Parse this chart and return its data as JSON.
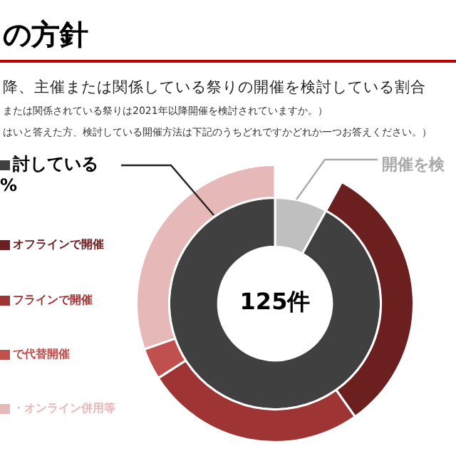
{
  "chart_data": {
    "type": "donut",
    "title": "の方針",
    "subtitle": "降、主催または関係している祭りの開催を検討している割合",
    "annotations": [
      "または関係されている祭りは2021年以降開催を検討されていますか。）",
      "はいと答えた方、検討している開催方法は下記のうちどれですかどれか一つお答えください。）",
      "%",
      "125件"
    ],
    "categories": [
      "開催を検",
      "討している",
      "オフラインで開催",
      "フラインで開催",
      "で代替開催",
      "・オンライン併用等"
    ],
    "series": [
      {
        "values": [
          8,
          92,
          null,
          null,
          null,
          null
        ],
        "colors": [
          "#bfbfbf",
          "#404040",
          null,
          null,
          null,
          null
        ]
      },
      {
        "values": [
          null,
          null,
          35,
          28,
          4,
          33
        ],
        "colors": [
          null,
          null,
          "#6b1f1f",
          "#9e3434",
          "#c0504d",
          "#e6b8b7"
        ]
      }
    ],
    "legend": "left"
  }
}
